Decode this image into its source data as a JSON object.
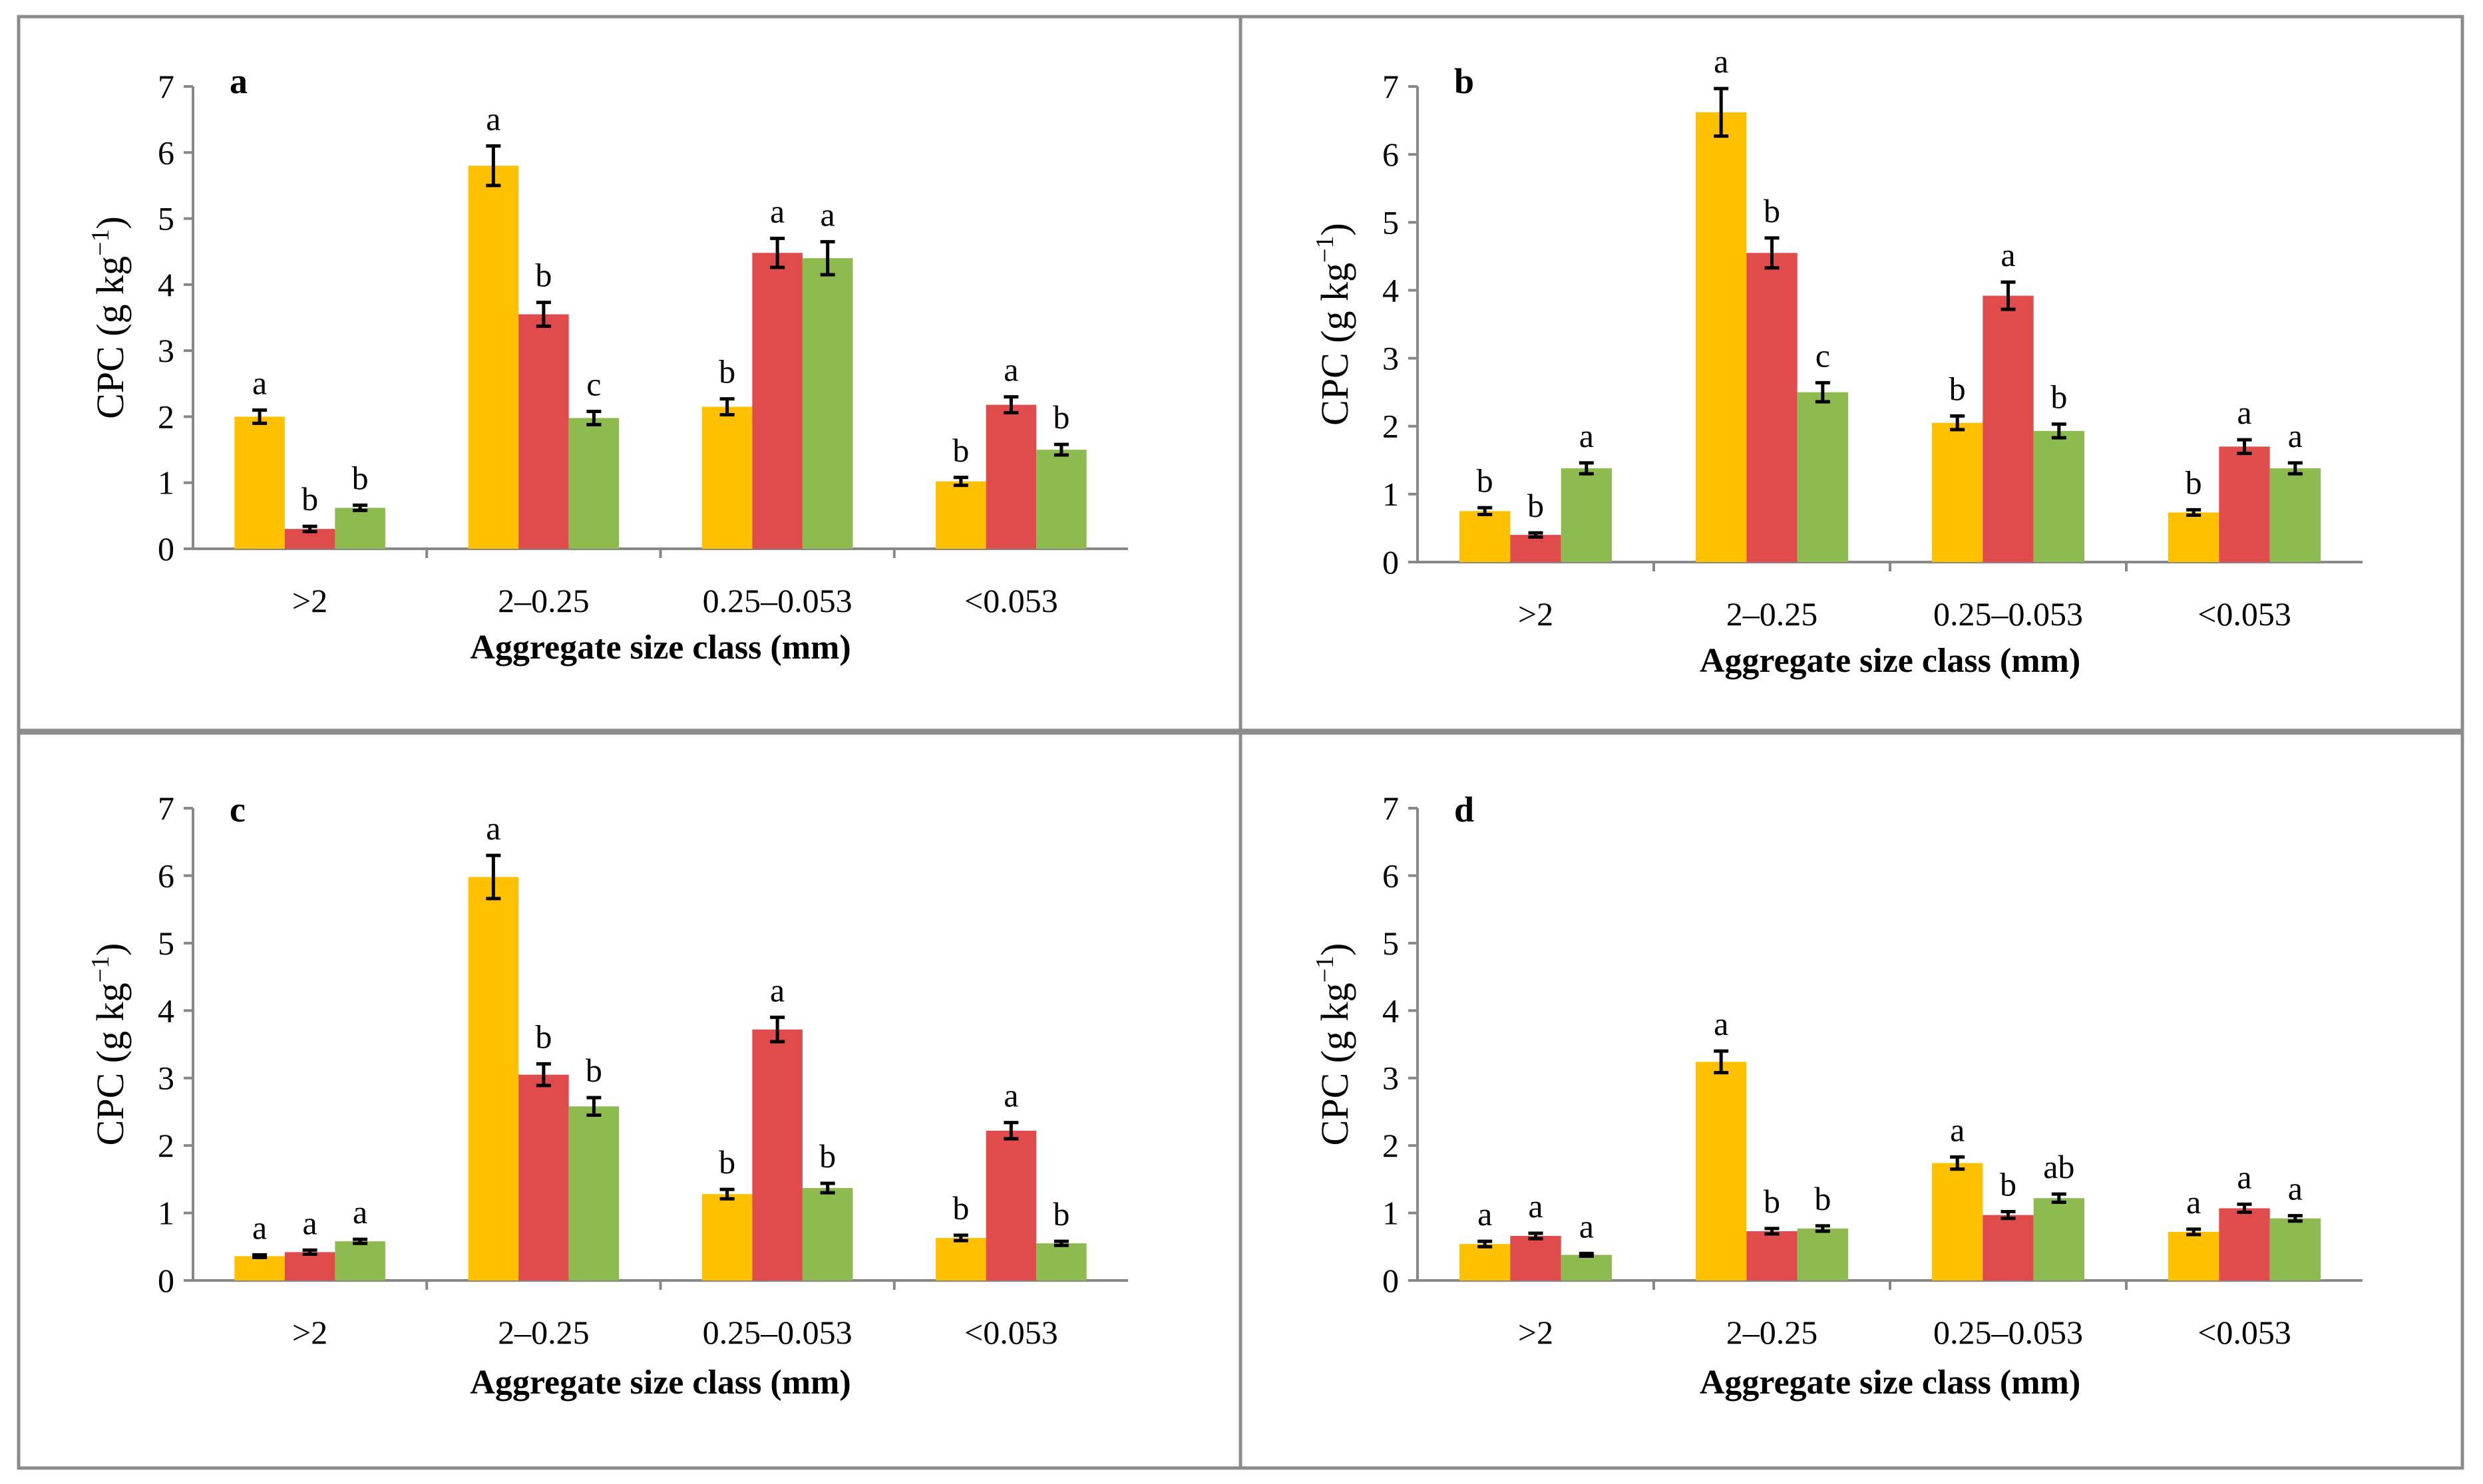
{
  "colors": {
    "series1": "#ffc000",
    "series2": "#e04b4b",
    "series3": "#8dbb4f"
  },
  "chart_data": [
    {
      "type": "bar",
      "title": "a",
      "xlabel": "Aggregate size class (mm)",
      "ylabel": "CPC (g kg",
      "ylabel_sup": "−1",
      "ylabel_close": ")",
      "ylim": [
        0,
        7
      ],
      "yticks": [
        "0",
        "1",
        "2",
        "3",
        "4",
        "5",
        "6",
        "7"
      ],
      "categories": [
        ">2",
        "2–0.25",
        "0.25–0.053",
        "<0.053"
      ],
      "series": [
        {
          "values": [
            2.0,
            5.8,
            2.15,
            1.02
          ],
          "errors": [
            0.1,
            0.3,
            0.12,
            0.06
          ],
          "letters": [
            "a",
            "a",
            "b",
            "b"
          ]
        },
        {
          "values": [
            0.3,
            3.55,
            4.48,
            2.18
          ],
          "errors": [
            0.04,
            0.18,
            0.22,
            0.12
          ],
          "letters": [
            "b",
            "b",
            "a",
            "a"
          ]
        },
        {
          "values": [
            0.62,
            1.98,
            4.4,
            1.5
          ],
          "errors": [
            0.04,
            0.1,
            0.25,
            0.08
          ],
          "letters": [
            "b",
            "c",
            "a",
            "b"
          ]
        }
      ]
    },
    {
      "type": "bar",
      "title": "b",
      "xlabel": "Aggregate size class (mm)",
      "ylabel": "CPC (g kg",
      "ylabel_sup": "−1",
      "ylabel_close": ")",
      "ylim": [
        0,
        7
      ],
      "yticks": [
        "0",
        "1",
        "2",
        "3",
        "4",
        "5",
        "6",
        "7"
      ],
      "categories": [
        ">2",
        "2–0.25",
        "0.25–0.053",
        "<0.053"
      ],
      "series": [
        {
          "values": [
            0.75,
            6.62,
            2.05,
            0.73
          ],
          "errors": [
            0.05,
            0.35,
            0.1,
            0.04
          ],
          "letters": [
            "b",
            "a",
            "b",
            "b"
          ]
        },
        {
          "values": [
            0.4,
            4.55,
            3.92,
            1.7
          ],
          "errors": [
            0.03,
            0.22,
            0.2,
            0.1
          ],
          "letters": [
            "b",
            "b",
            "a",
            "a"
          ]
        },
        {
          "values": [
            1.38,
            2.5,
            1.93,
            1.38
          ],
          "errors": [
            0.08,
            0.14,
            0.1,
            0.08
          ],
          "letters": [
            "a",
            "c",
            "b",
            "a"
          ]
        }
      ]
    },
    {
      "type": "bar",
      "title": "c",
      "xlabel": "Aggregate size class (mm)",
      "ylabel": "CPC (g kg",
      "ylabel_sup": "−1",
      "ylabel_close": ")",
      "ylim": [
        0,
        7
      ],
      "yticks": [
        "0",
        "1",
        "2",
        "3",
        "4",
        "5",
        "6",
        "7"
      ],
      "categories": [
        ">2",
        "2–0.25",
        "0.25–0.053",
        "<0.053"
      ],
      "series": [
        {
          "values": [
            0.36,
            5.98,
            1.28,
            0.63
          ],
          "errors": [
            0.02,
            0.32,
            0.07,
            0.04
          ],
          "letters": [
            "a",
            "a",
            "b",
            "b"
          ]
        },
        {
          "values": [
            0.42,
            3.05,
            3.72,
            2.22
          ],
          "errors": [
            0.03,
            0.16,
            0.18,
            0.12
          ],
          "letters": [
            "a",
            "b",
            "a",
            "a"
          ]
        },
        {
          "values": [
            0.58,
            2.58,
            1.37,
            0.55
          ],
          "errors": [
            0.03,
            0.13,
            0.07,
            0.03
          ],
          "letters": [
            "a",
            "b",
            "b",
            "b"
          ]
        }
      ]
    },
    {
      "type": "bar",
      "title": "d",
      "xlabel": "Aggregate size class (mm)",
      "ylabel": "CPC (g kg",
      "ylabel_sup": "−1",
      "ylabel_close": ")",
      "ylim": [
        0,
        7
      ],
      "yticks": [
        "0",
        "1",
        "2",
        "3",
        "4",
        "5",
        "6",
        "7"
      ],
      "categories": [
        ">2",
        "2–0.25",
        "0.25–0.053",
        "<0.053"
      ],
      "series": [
        {
          "values": [
            0.54,
            3.24,
            1.74,
            0.72
          ],
          "errors": [
            0.04,
            0.16,
            0.09,
            0.04
          ],
          "letters": [
            "a",
            "a",
            "a",
            "a"
          ]
        },
        {
          "values": [
            0.66,
            0.73,
            0.97,
            1.07
          ],
          "errors": [
            0.04,
            0.04,
            0.05,
            0.06
          ],
          "letters": [
            "a",
            "b",
            "b",
            "a"
          ]
        },
        {
          "values": [
            0.38,
            0.77,
            1.22,
            0.92
          ],
          "errors": [
            0.02,
            0.04,
            0.06,
            0.04
          ],
          "letters": [
            "a",
            "b",
            "ab",
            "a"
          ]
        }
      ]
    }
  ]
}
